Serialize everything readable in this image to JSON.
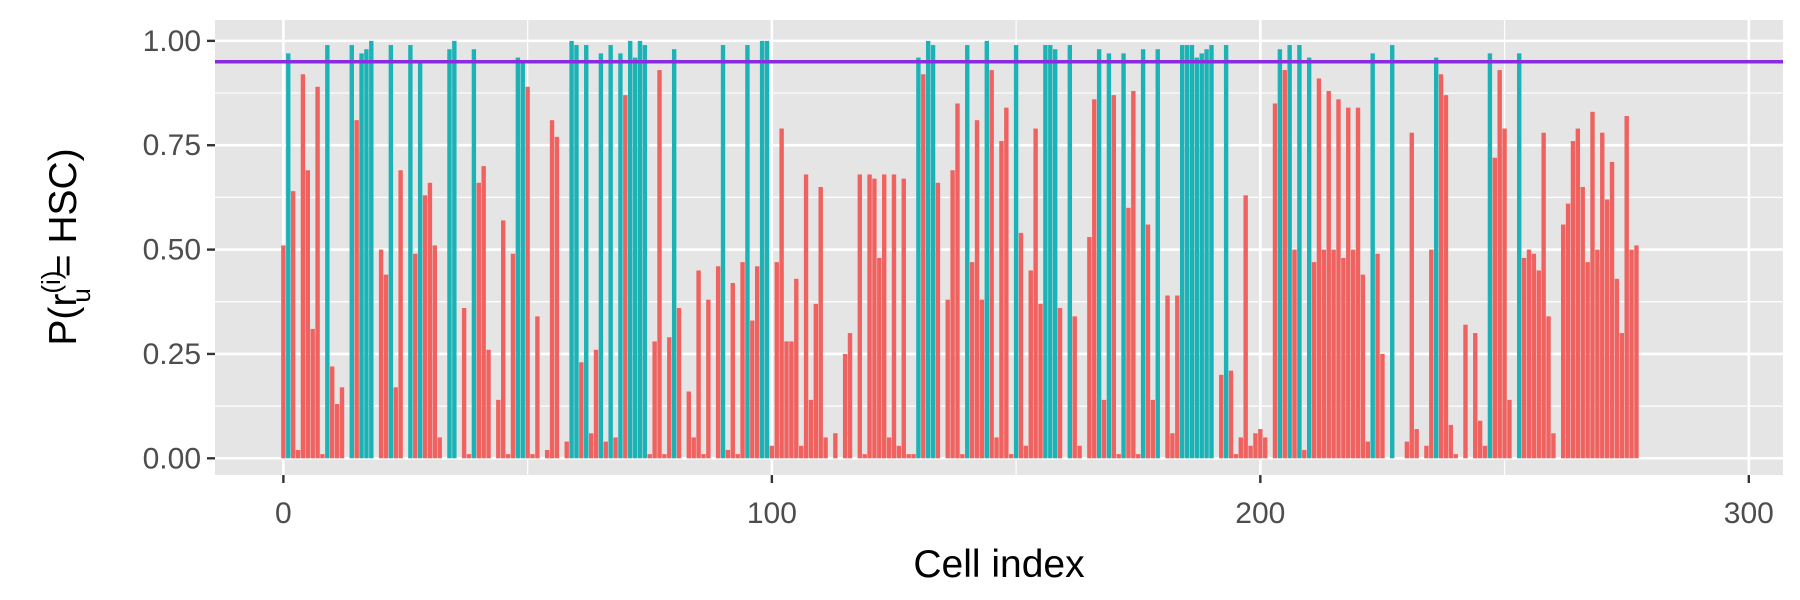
{
  "chart_data": {
    "type": "bar",
    "xlabel": "Cell index",
    "ylabel": {
      "main": "P(r",
      "sup": "(i)",
      "sub": "u",
      "tail": " = HSC)"
    },
    "xlim": [
      -14,
      307
    ],
    "ylim": [
      -0.04,
      1.05
    ],
    "x_ticks": [
      0,
      100,
      200,
      300
    ],
    "x_tick_labels": [
      "0",
      "100",
      "200",
      "300"
    ],
    "y_ticks": [
      0,
      0.25,
      0.5,
      0.75,
      1.0
    ],
    "y_tick_labels": [
      "0.00",
      "0.25",
      "0.50",
      "0.75",
      "1.00"
    ],
    "grid": true,
    "threshold": 0.95,
    "colors": {
      "panel": "#e5e5e5",
      "grid": "#ffffff",
      "above_threshold": "#1bb3b6",
      "below_threshold": "#f0625f",
      "threshold_line": "#8a2be2"
    },
    "values": [
      0.51,
      0.97,
      0.64,
      0.02,
      0.92,
      0.69,
      0.31,
      0.89,
      0.01,
      0.99,
      0.22,
      0.13,
      0.17,
      0.0,
      0.99,
      0.81,
      0.97,
      0.98,
      1.0,
      0.0,
      0.5,
      0.44,
      0.99,
      0.17,
      0.69,
      0.0,
      0.99,
      0.49,
      0.95,
      0.63,
      0.66,
      0.51,
      0.05,
      0.0,
      0.98,
      1.0,
      0.0,
      0.36,
      0.01,
      0.98,
      0.66,
      0.7,
      0.26,
      0.0,
      0.14,
      0.57,
      0.01,
      0.49,
      0.96,
      0.95,
      0.89,
      0.01,
      0.34,
      0.0,
      0.02,
      0.81,
      0.77,
      0.0,
      0.04,
      1.0,
      0.99,
      0.23,
      0.99,
      0.06,
      0.26,
      0.97,
      0.04,
      0.99,
      0.05,
      0.97,
      0.87,
      1.0,
      0.96,
      1.0,
      0.99,
      0.01,
      0.28,
      0.93,
      0.01,
      0.29,
      0.98,
      0.36,
      0.0,
      0.16,
      0.05,
      0.45,
      0.01,
      0.38,
      0.0,
      0.46,
      0.99,
      0.02,
      0.42,
      0.01,
      0.47,
      0.99,
      0.33,
      0.46,
      1.0,
      1.0,
      0.03,
      0.47,
      0.79,
      0.28,
      0.28,
      0.43,
      0.03,
      0.68,
      0.14,
      0.37,
      0.65,
      0.05,
      0.0,
      0.06,
      0.0,
      0.25,
      0.3,
      0.0,
      0.68,
      0.01,
      0.68,
      0.67,
      0.48,
      0.68,
      0.05,
      0.68,
      0.03,
      0.67,
      0.01,
      0.01,
      0.96,
      0.92,
      1.0,
      0.99,
      0.66,
      0.0,
      0.38,
      0.69,
      0.85,
      0.01,
      0.99,
      0.47,
      0.81,
      0.38,
      1.0,
      0.93,
      0.05,
      0.76,
      0.84,
      0.01,
      0.99,
      0.54,
      0.03,
      0.45,
      0.79,
      0.37,
      0.99,
      0.99,
      0.98,
      0.36,
      0.0,
      0.99,
      0.34,
      0.03,
      0.0,
      0.53,
      0.86,
      0.98,
      0.14,
      0.97,
      0.87,
      0.01,
      0.97,
      0.6,
      0.88,
      0.01,
      0.98,
      0.56,
      0.14,
      0.98,
      0.0,
      0.39,
      0.06,
      0.39,
      0.99,
      0.99,
      0.99,
      0.96,
      0.97,
      0.98,
      0.99,
      0.0,
      0.2,
      0.99,
      0.21,
      0.01,
      0.05,
      0.63,
      0.03,
      0.06,
      0.07,
      0.05,
      0.0,
      0.85,
      0.98,
      0.93,
      0.99,
      0.5,
      0.99,
      0.02,
      0.96,
      0.47,
      0.91,
      0.5,
      0.88,
      0.5,
      0.86,
      0.48,
      0.84,
      0.5,
      0.84,
      0.44,
      0.04,
      0.97,
      0.49,
      0.25,
      0.0,
      0.99,
      0.0,
      0.0,
      0.04,
      0.78,
      0.07,
      0.0,
      0.03,
      0.5,
      0.96,
      0.92,
      0.87,
      0.08,
      0.01,
      0.0,
      0.32,
      0.0,
      0.3,
      0.09,
      0.03,
      0.97,
      0.72,
      0.93,
      0.79,
      0.14,
      0.0,
      0.97,
      0.48,
      0.5,
      0.49,
      0.45,
      0.78,
      0.34,
      0.06,
      0.0,
      0.56,
      0.61,
      0.76,
      0.79,
      0.65,
      0.47,
      0.83,
      0.5,
      0.78,
      0.62,
      0.71,
      0.43,
      0.3,
      0.82,
      0.5,
      0.51
    ]
  }
}
